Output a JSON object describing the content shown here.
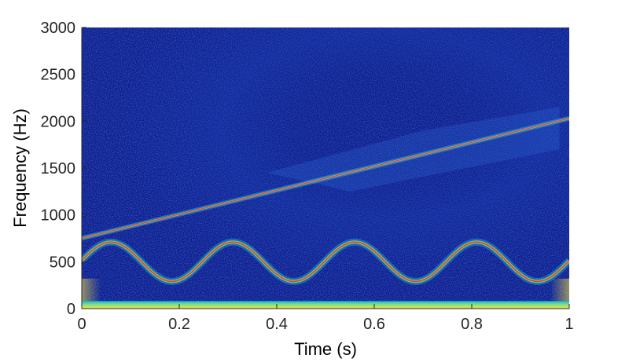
{
  "chart_data": {
    "type": "heatmap",
    "title": "",
    "xlabel": "Time (s)",
    "ylabel": "Frequency (Hz)",
    "xlim": [
      0,
      1
    ],
    "ylim": [
      0,
      3000
    ],
    "xticks": [
      0,
      0.2,
      0.4,
      0.6,
      0.8,
      1
    ],
    "xtick_labels": [
      "0",
      "0.2",
      "0.4",
      "0.6",
      "0.8",
      "1"
    ],
    "yticks": [
      0,
      500,
      1000,
      1500,
      2000,
      2500,
      3000
    ],
    "ytick_labels": [
      "0",
      "500",
      "1000",
      "1500",
      "2000",
      "2500",
      "3000"
    ],
    "grid": false,
    "colormap": "jet",
    "background_color": "#0b1a8c",
    "components": [
      {
        "kind": "linear-chirp",
        "t": [
          0,
          1
        ],
        "f": [
          750,
          2030
        ],
        "color": "#e8402a"
      },
      {
        "kind": "sinusoidal-fm",
        "center_hz": 500,
        "amplitude_hz": 210,
        "period_s": 0.25,
        "peak_times_s": [
          0.06,
          0.31,
          0.56,
          0.81
        ],
        "trough_times_s": [
          0.19,
          0.44,
          0.69,
          0.94
        ],
        "color": "#e8402a"
      },
      {
        "kind": "low-frequency-band",
        "f": [
          0,
          80
        ],
        "color": "#f2e23a"
      }
    ]
  }
}
